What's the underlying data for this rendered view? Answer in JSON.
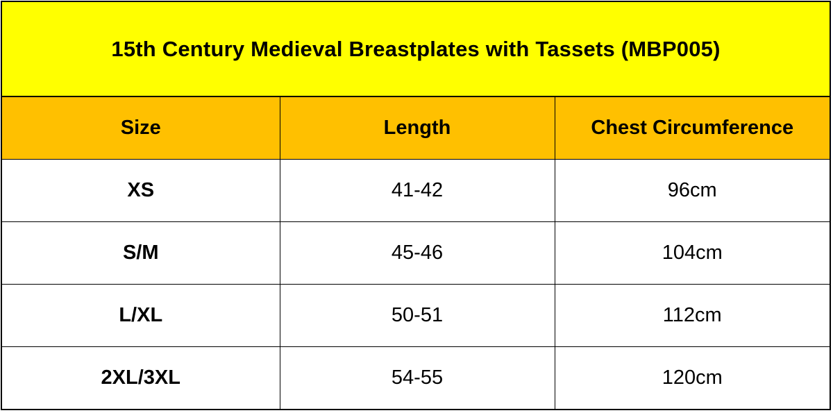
{
  "title": "15th Century Medieval Breastplates with Tassets (MBP005)",
  "table": {
    "headers": [
      "Size",
      "Length",
      "Chest Circumference"
    ],
    "rows": [
      {
        "size": "XS",
        "length": "41-42",
        "chest": "96cm"
      },
      {
        "size": "S/M",
        "length": "45-46",
        "chest": "104cm"
      },
      {
        "size": "L/XL",
        "length": "50-51",
        "chest": "112cm"
      },
      {
        "size": "2XL/3XL",
        "length": "54-55",
        "chest": "120cm"
      }
    ]
  },
  "colors": {
    "title_background": "#ffff00",
    "header_background": "#ffc000",
    "border": "#000000"
  }
}
